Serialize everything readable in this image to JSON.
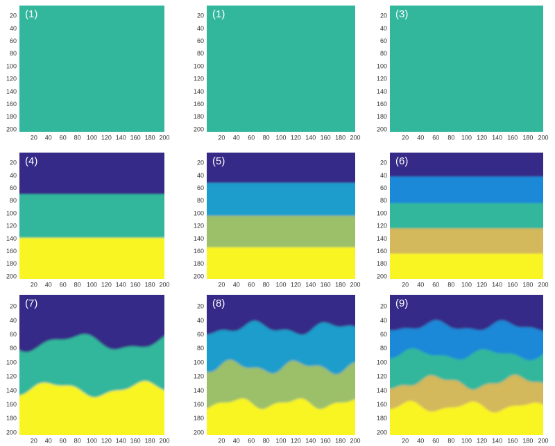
{
  "panels": [
    {
      "label": "(1)"
    },
    {
      "label": "(1)"
    },
    {
      "label": "(3)"
    },
    {
      "label": "(4)"
    },
    {
      "label": "(5)"
    },
    {
      "label": "(6)"
    },
    {
      "label": "(7)"
    },
    {
      "label": "(8)"
    },
    {
      "label": "(9)"
    }
  ],
  "xticks": [
    20,
    40,
    60,
    80,
    100,
    120,
    140,
    160,
    180,
    200
  ],
  "yticks": [
    20,
    40,
    60,
    80,
    100,
    120,
    140,
    160,
    180,
    200
  ]
}
